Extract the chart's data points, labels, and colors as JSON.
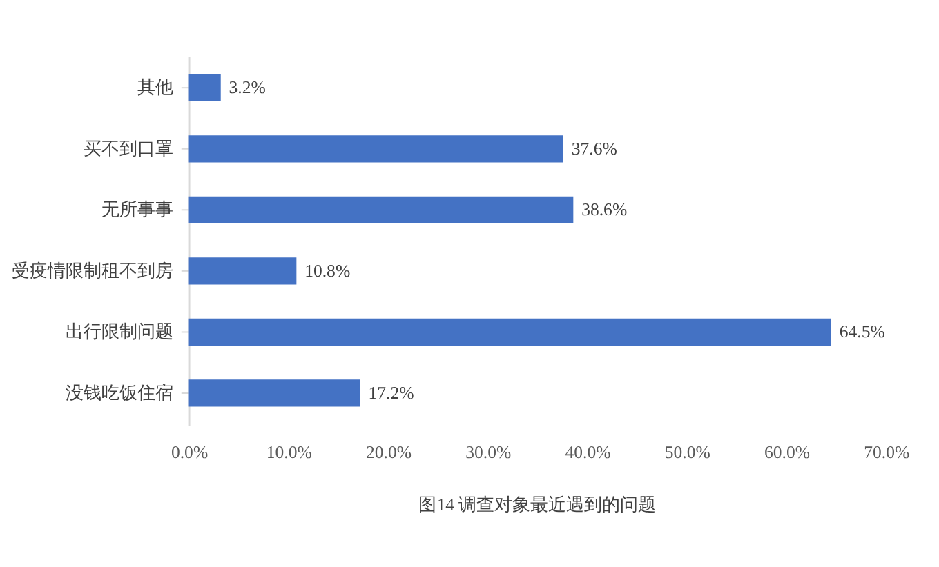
{
  "chart_data": {
    "type": "bar",
    "orientation": "horizontal",
    "title": "图14 调查对象最近遇到的问题",
    "categories": [
      "其他",
      "买不到口罩",
      "无所事事",
      "受疫情限制租不到房",
      "出行限制问题",
      "没钱吃饭住宿"
    ],
    "values": [
      3.2,
      37.6,
      38.6,
      10.8,
      64.5,
      17.2
    ],
    "value_labels": [
      "3.2%",
      "37.6%",
      "38.6%",
      "10.8%",
      "64.5%",
      "17.2%"
    ],
    "color": "#4472c4",
    "xlim": [
      0,
      70
    ],
    "xticks": [
      {
        "value": 0,
        "label": "0.0%"
      },
      {
        "value": 10,
        "label": "10.0%"
      },
      {
        "value": 20,
        "label": "20.0%"
      },
      {
        "value": 30,
        "label": "30.0%"
      },
      {
        "value": 40,
        "label": "40.0%"
      },
      {
        "value": 50,
        "label": "50.0%"
      },
      {
        "value": 60,
        "label": "60.0%"
      },
      {
        "value": 70,
        "label": "70.0%"
      }
    ],
    "grid": false
  }
}
